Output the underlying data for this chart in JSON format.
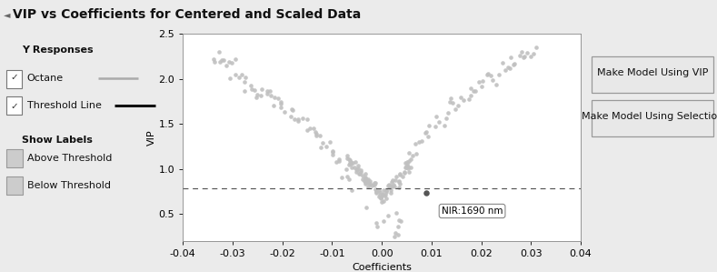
{
  "title": "VIP vs Coefficients for Centered and Scaled Data",
  "xlabel": "Coefficients",
  "ylabel": "VIP",
  "xlim": [
    -0.04,
    0.04
  ],
  "ylim": [
    0.2,
    2.5
  ],
  "threshold_vip": 0.78,
  "highlighted_point": [
    0.009,
    0.73
  ],
  "highlighted_label": "NIR:1690 nm",
  "dot_color": "#c0c0c0",
  "highlight_dot_color": "#555555",
  "threshold_line_color": "#555555",
  "background_color": "#ebebeb",
  "plot_bg_color": "#ffffff",
  "title_bg_color": "#d8d8d8",
  "buttons": [
    "Make Model Using VIP",
    "Make Model Using Selection"
  ],
  "title_fontsize": 10,
  "axis_fontsize": 8,
  "tick_fontsize": 8,
  "legend_fontsize": 8,
  "button_fontsize": 8,
  "xticks": [
    -0.04,
    -0.03,
    -0.02,
    -0.01,
    0.0,
    0.01,
    0.02,
    0.03,
    0.04
  ],
  "yticks": [
    0.5,
    1.0,
    1.5,
    2.0,
    2.5
  ]
}
